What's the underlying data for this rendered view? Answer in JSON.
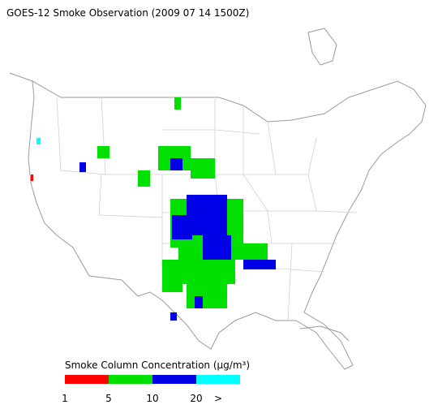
{
  "title": "GOES-12 Smoke Observation (2009 07 14  1500Z)",
  "legend": {
    "title": "Smoke Column Concentration (μg/m³)",
    "colors": [
      "#ff0000",
      "#00e000",
      "#0000e6",
      "#00ffff"
    ],
    "labels": [
      "1",
      "5",
      "10",
      "20",
      ">"
    ]
  }
}
